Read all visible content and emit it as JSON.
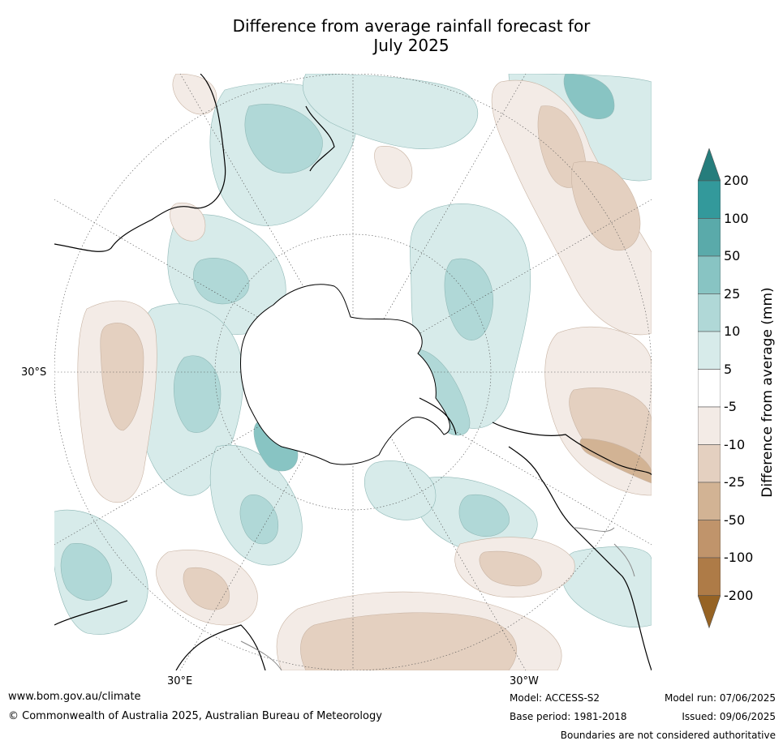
{
  "title_line1": "Difference from average rainfall forecast for",
  "title_line2": "July 2025",
  "map": {
    "projection": "south-polar-stereographic",
    "lat_label": "30°S",
    "lon_labels": [
      "30°E",
      "30°W"
    ],
    "graticule": "dotted"
  },
  "legend": {
    "title": "Difference from average (mm)",
    "ticks": [
      "200",
      "100",
      "50",
      "25",
      "10",
      "5",
      "-5",
      "-10",
      "-25",
      "-50",
      "-100",
      "-200"
    ],
    "colors_top_to_bottom": [
      "#267d7c",
      "#33999b",
      "#5aaaaa",
      "#88c4c3",
      "#b0d8d7",
      "#d7ebea",
      "#ffffff",
      "#f3ebe6",
      "#e4d0c0",
      "#d2b394",
      "#c0946b",
      "#ae7b47",
      "#966324"
    ],
    "extend": "both"
  },
  "footer": {
    "website": "www.bom.gov.au/climate",
    "copyright": "© Commonwealth of Australia 2025, Australian Bureau of Meteorology",
    "model": "Model: ACCESS-S2",
    "base_period": "Base period: 1981-2018",
    "model_run": "Model run: 07/06/2025",
    "issued": "Issued: 09/06/2025",
    "disclaimer": "Boundaries are not considered authoritative"
  }
}
